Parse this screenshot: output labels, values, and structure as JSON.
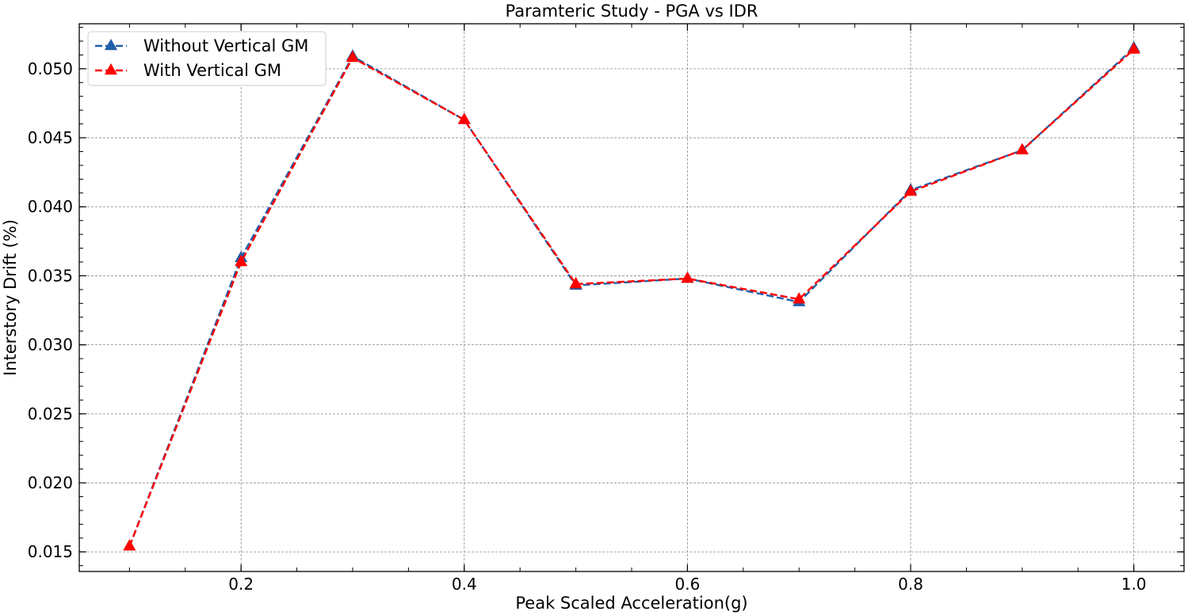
{
  "chart_data": {
    "type": "line",
    "title": "Paramteric Study - PGA vs IDR",
    "xlabel": "Peak Scaled Acceleration(g)",
    "ylabel": "Interstory Drift (%)",
    "x": [
      0.1,
      0.2,
      0.3,
      0.4,
      0.5,
      0.6,
      0.7,
      0.8,
      0.9,
      1.0
    ],
    "series": [
      {
        "name": "Without Vertical GM",
        "color": "#1f5fa8",
        "marker": "triangle-up",
        "line_style": "dashed",
        "values": [
          0.0154,
          0.0363,
          0.0509,
          0.0463,
          0.0343,
          0.0348,
          0.0331,
          0.0412,
          0.0441,
          0.0515
        ]
      },
      {
        "name": "With Vertical GM",
        "color": "#ff0000",
        "marker": "triangle-up",
        "line_style": "dashed",
        "values": [
          0.0154,
          0.036,
          0.0508,
          0.0463,
          0.0344,
          0.0348,
          0.0333,
          0.0411,
          0.0441,
          0.0514
        ]
      }
    ],
    "xlim": [
      0.055,
      1.045
    ],
    "ylim": [
      0.01358,
      0.05326
    ],
    "xticks": [
      0.2,
      0.4,
      0.6,
      0.8,
      1.0
    ],
    "xtick_labels": [
      "0.2",
      "0.4",
      "0.6",
      "0.8",
      "1.0"
    ],
    "yticks": [
      0.015,
      0.02,
      0.025,
      0.03,
      0.035,
      0.04,
      0.045,
      0.05
    ],
    "ytick_labels": [
      "0.015",
      "0.020",
      "0.025",
      "0.030",
      "0.035",
      "0.040",
      "0.045",
      "0.050"
    ],
    "grid": true,
    "legend_position": "top-left"
  }
}
